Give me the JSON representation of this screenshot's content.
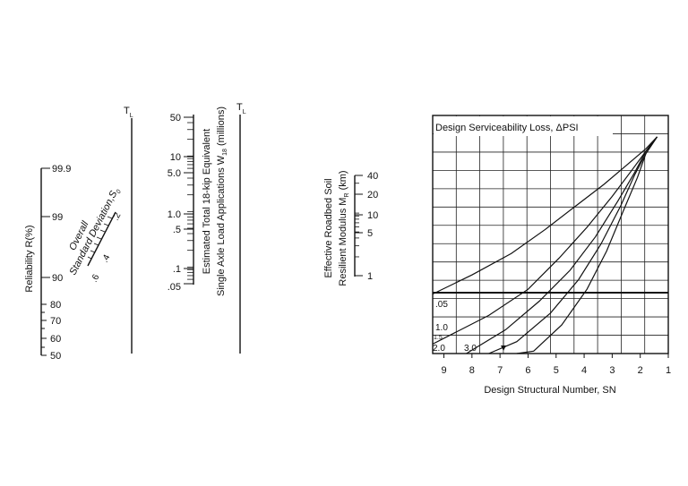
{
  "reliability": {
    "axis_label": "Reliability R(%)",
    "ticks": [
      "99.9",
      "99",
      "90",
      "80",
      "70",
      "60",
      "50"
    ]
  },
  "std_dev": {
    "label_line1": "Overall",
    "label_line2": "Standard Deviation,S",
    "label_sub": "0",
    "ticks": [
      ".2",
      ".4",
      ".6"
    ]
  },
  "tl": {
    "t": "T",
    "sub": "L"
  },
  "w18": {
    "label_line1": "Estimated Total 18-kip Equivalent",
    "label_line2": "Single Axle Load Applications W",
    "label_sub": "18",
    "label_tail": " (millions)",
    "ticks": [
      "50",
      "10",
      "5.0",
      "1.0",
      ".5",
      ".1",
      ".05"
    ]
  },
  "mr": {
    "label_line1": "Effective Roadbed Soil",
    "label_line2": "Resilient Modulus M",
    "label_sub": "R",
    "label_tail": " (km)",
    "ticks": [
      "40",
      "20",
      "10",
      "5",
      "1"
    ]
  },
  "chart": {
    "title": "Design Serviceability Loss, ΔPSI",
    "xlabel": "Design Structural Number, SN",
    "x_ticks": [
      "9",
      "8",
      "7",
      "6",
      "5",
      "4",
      "3",
      "2",
      "1"
    ],
    "curve_labels": [
      ".05",
      "1.0",
      "1.5",
      "2.0",
      "3.0"
    ]
  },
  "chart_data": {
    "type": "line",
    "title": "Design Serviceability Loss, ΔPSI",
    "xlabel": "Design Structural Number, SN",
    "x_reversed": true,
    "xlim": [
      9.4,
      1
    ],
    "x_ticks": [
      9,
      8,
      7,
      6,
      5,
      4,
      3,
      2,
      1
    ],
    "series": [
      {
        "name": ".05",
        "x": [
          1.4,
          1.8,
          2.5,
          3.3,
          4.3,
          5.4,
          6.6,
          8.0,
          9.4
        ],
        "y": [
          0.91,
          0.86,
          0.79,
          0.71,
          0.62,
          0.52,
          0.42,
          0.33,
          0.25
        ]
      },
      {
        "name": "1.0",
        "x": [
          1.4,
          1.8,
          2.3,
          3.0,
          3.9,
          4.9,
          6.0,
          7.4,
          9.4
        ],
        "y": [
          0.91,
          0.85,
          0.77,
          0.66,
          0.53,
          0.4,
          0.27,
          0.16,
          0.04
        ]
      },
      {
        "name": "1.5",
        "x": [
          1.4,
          1.8,
          2.2,
          2.8,
          3.6,
          4.5,
          5.6,
          6.8,
          8.2
        ],
        "y": [
          0.91,
          0.85,
          0.76,
          0.64,
          0.49,
          0.35,
          0.22,
          0.1,
          0.0
        ]
      },
      {
        "name": "2.0",
        "x": [
          1.4,
          1.8,
          2.2,
          2.7,
          3.4,
          4.2,
          5.2,
          6.4,
          7.4
        ],
        "y": [
          0.91,
          0.84,
          0.75,
          0.62,
          0.46,
          0.31,
          0.17,
          0.05,
          0.0
        ]
      },
      {
        "name": "3.0",
        "x": [
          1.4,
          1.8,
          2.1,
          2.6,
          3.2,
          3.9,
          4.8,
          5.8,
          6.4
        ],
        "y": [
          0.91,
          0.84,
          0.74,
          0.6,
          0.43,
          0.27,
          0.12,
          0.01,
          0.0
        ]
      }
    ]
  }
}
